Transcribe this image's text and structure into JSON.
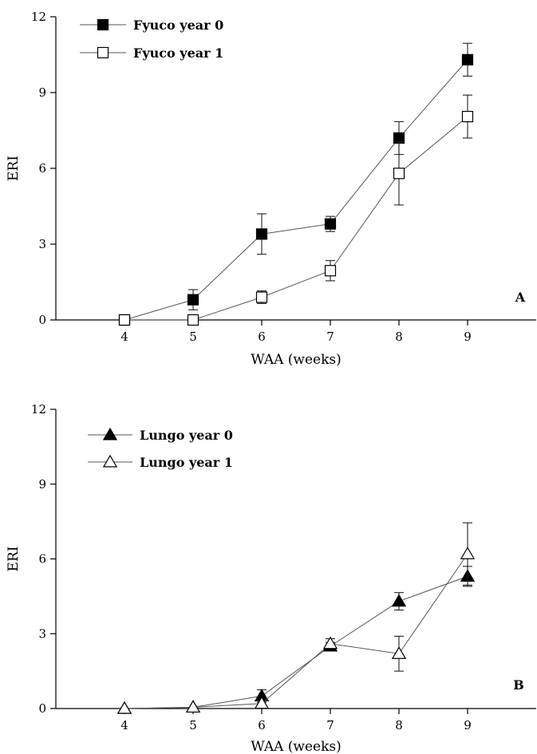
{
  "chart_data": [
    {
      "type": "line",
      "panel_label": "A",
      "xlabel": "WAA (weeks)",
      "ylabel": "ERI",
      "x_ticks": [
        4,
        5,
        6,
        7,
        8,
        9
      ],
      "y_ticks": [
        0,
        3,
        6,
        9,
        12
      ],
      "xlim": [
        3,
        10
      ],
      "ylim": [
        0,
        12
      ],
      "legend_position": "top-left",
      "series": [
        {
          "name": "Fyuco year 0",
          "marker": "filled-square",
          "color": "#000000",
          "x": [
            4,
            5,
            6,
            7,
            8,
            9
          ],
          "y": [
            0,
            0.8,
            3.4,
            3.8,
            7.2,
            10.3
          ],
          "err": [
            0,
            0.4,
            0.8,
            0.3,
            0.65,
            0.65
          ]
        },
        {
          "name": "Fyuco year 1",
          "marker": "open-square",
          "color": "#000000",
          "x": [
            4,
            5,
            6,
            7,
            8,
            9
          ],
          "y": [
            0,
            0,
            0.9,
            1.95,
            5.8,
            8.05
          ],
          "err": [
            0,
            0,
            0.25,
            0.4,
            1.25,
            0.85
          ]
        }
      ]
    },
    {
      "type": "line",
      "panel_label": "B",
      "xlabel": "WAA (weeks)",
      "ylabel": "ERI",
      "x_ticks": [
        4,
        5,
        6,
        7,
        8,
        9
      ],
      "y_ticks": [
        0,
        3,
        6,
        9,
        12
      ],
      "xlim": [
        3,
        10
      ],
      "ylim": [
        0,
        12
      ],
      "legend_position": "top-left",
      "series": [
        {
          "name": "Lungo year 0",
          "marker": "filled-triangle",
          "color": "#000000",
          "x": [
            4,
            5,
            6,
            7,
            8,
            9
          ],
          "y": [
            0,
            0.05,
            0.5,
            2.5,
            4.3,
            5.3
          ],
          "err": [
            0,
            0,
            0.25,
            0.15,
            0.35,
            0.4
          ]
        },
        {
          "name": "Lungo year 1",
          "marker": "open-triangle",
          "color": "#000000",
          "x": [
            4,
            5,
            6,
            7,
            8,
            9
          ],
          "y": [
            0,
            0.05,
            0.2,
            2.6,
            2.2,
            6.2
          ],
          "err": [
            0,
            0,
            0.1,
            0.2,
            0.7,
            1.25
          ]
        }
      ]
    }
  ]
}
